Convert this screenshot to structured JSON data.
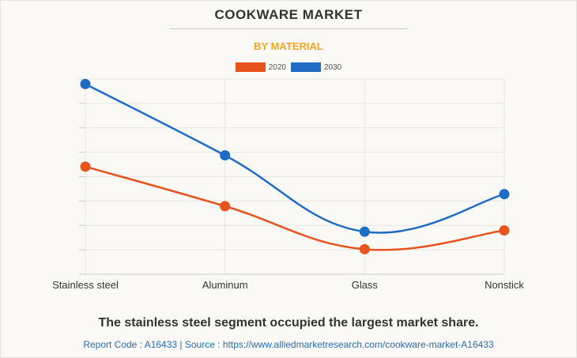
{
  "header": {
    "title": "COOKWARE MARKET",
    "subtitle": "BY MATERIAL"
  },
  "chart_data": {
    "type": "line",
    "categories": [
      "Stainless steel",
      "Aluminum",
      "Glass",
      "Nonstick"
    ],
    "series": [
      {
        "name": "2020",
        "color": "#e8531e",
        "values": [
          4.3,
          2.72,
          1.0,
          1.75
        ]
      },
      {
        "name": "2030",
        "color": "#1f6cc6",
        "values": [
          7.6,
          4.75,
          1.7,
          3.2
        ]
      }
    ],
    "ylim": [
      0,
      7.8
    ],
    "grid": true,
    "legend": "top-center",
    "xlabel": "",
    "ylabel": ""
  },
  "footer": {
    "caption": "The stainless steel segment occupied the largest market share.",
    "source": "Report Code : A16433  |  Source : https://www.alliedmarketresearch.com/cookware-market-A16433"
  }
}
